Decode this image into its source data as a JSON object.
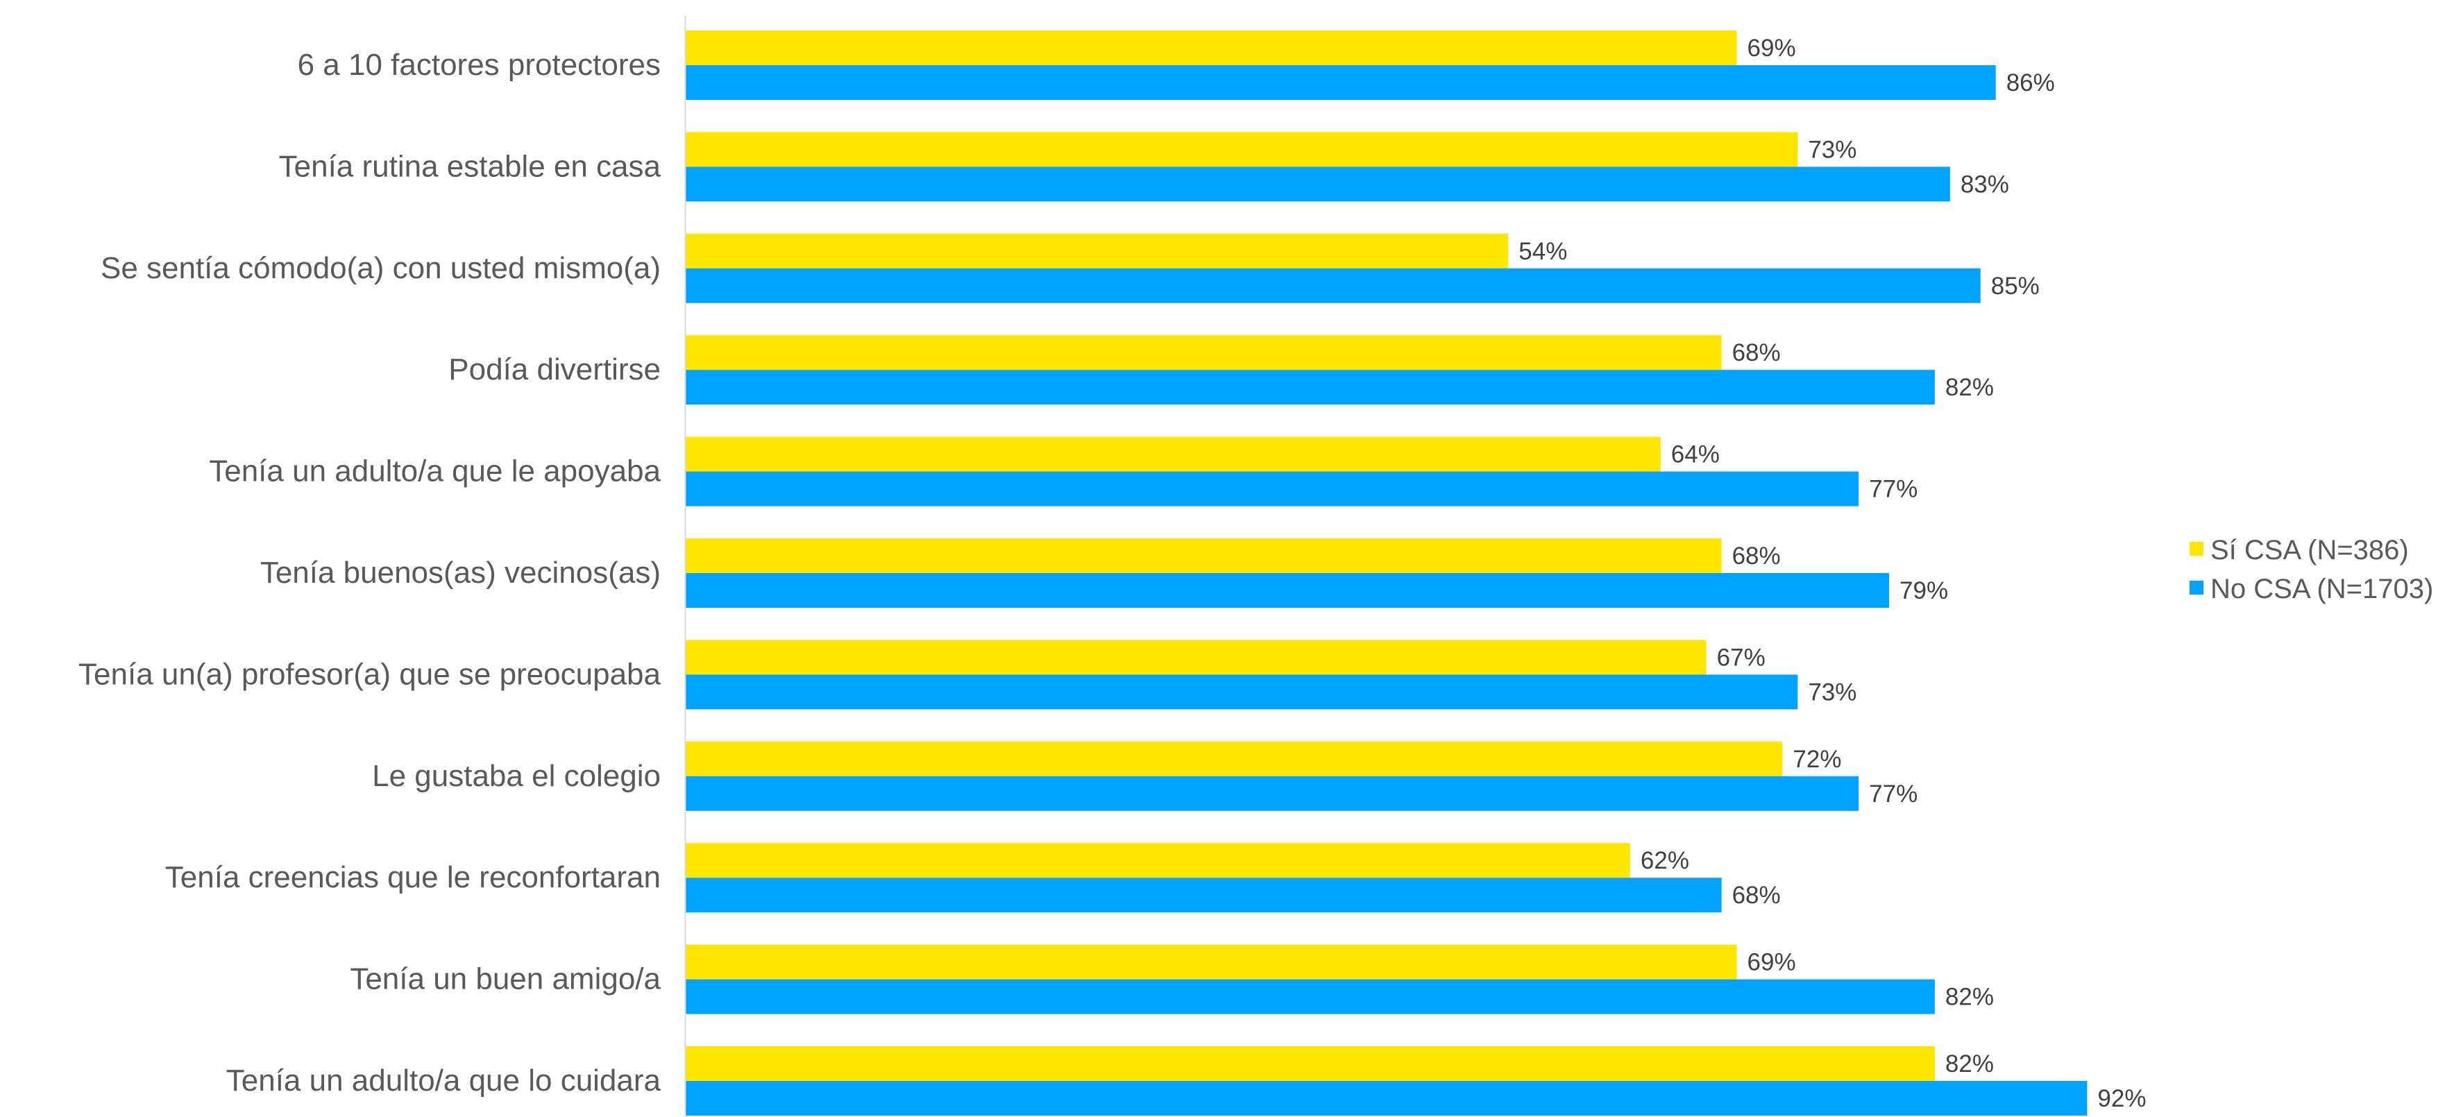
{
  "chart_data": {
    "type": "bar",
    "orientation": "horizontal",
    "categories": [
      "6 a 10 factores protectores",
      "Tenía rutina estable en casa",
      "Se sentía cómodo(a) con usted mismo(a)",
      "Podía divertirse",
      "Tenía un adulto/a que le apoyaba",
      "Tenía buenos(as) vecinos(as)",
      "Tenía un(a) profesor(a) que se preocupaba",
      "Le gustaba el colegio",
      "Tenía creencias que le reconfortaran",
      "Tenía un buen amigo/a",
      "Tenía un adulto/a que lo cuidara"
    ],
    "series": [
      {
        "name": "Sí CSA (N=386)",
        "color": "#FFE600",
        "values": [
          69,
          73,
          54,
          68,
          64,
          68,
          67,
          72,
          62,
          69,
          82
        ],
        "labels": [
          "69%",
          "73%",
          "54%",
          "68%",
          "64%",
          "68%",
          "67%",
          "72%",
          "62%",
          "69%",
          "82%"
        ]
      },
      {
        "name": "No CSA (N=1703)",
        "color": "#00A2FF",
        "values": [
          86,
          83,
          85,
          82,
          77,
          79,
          73,
          77,
          68,
          82,
          92
        ],
        "labels": [
          "86%",
          "83%",
          "85%",
          "82%",
          "77%",
          "79%",
          "73%",
          "77%",
          "68%",
          "82%",
          "92%"
        ]
      }
    ],
    "xlim": [
      0,
      100
    ],
    "value_unit": "%",
    "grid": false,
    "legend_position": "right",
    "axis_color": "#D9D9D9"
  }
}
